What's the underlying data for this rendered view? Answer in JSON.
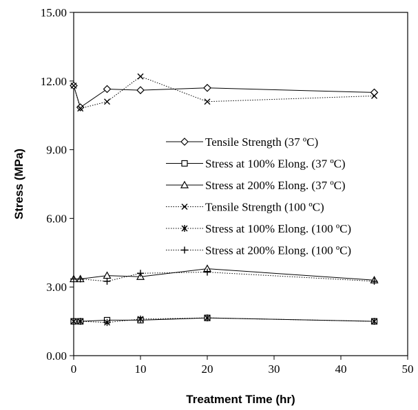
{
  "chart_data": {
    "type": "line",
    "xlabel": "Treatment Time (hr)",
    "ylabel": "Stress (MPa)",
    "xlim": [
      0,
      50
    ],
    "ylim": [
      0,
      15
    ],
    "x_ticks": [
      "0",
      "10",
      "20",
      "30",
      "40",
      "50"
    ],
    "y_ticks": [
      "0.00",
      "3.00",
      "6.00",
      "9.00",
      "12.00",
      "15.00"
    ],
    "grid": false,
    "legend_position": "center-right",
    "series": [
      {
        "name": "Tensile Strength (37 ºC)",
        "marker": "diamond",
        "line": "solid",
        "x": [
          0,
          1,
          5,
          10,
          20,
          45
        ],
        "y": [
          11.8,
          10.85,
          11.65,
          11.6,
          11.7,
          11.5
        ]
      },
      {
        "name": "Stress at 100% Elong. (37 ºC)",
        "marker": "square",
        "line": "solid",
        "x": [
          0,
          1,
          5,
          10,
          20,
          45
        ],
        "y": [
          1.5,
          1.5,
          1.55,
          1.55,
          1.65,
          1.5
        ]
      },
      {
        "name": "Stress at 200% Elong. (37 ºC)",
        "marker": "triangle",
        "line": "solid",
        "x": [
          0,
          1,
          5,
          10,
          20,
          45
        ],
        "y": [
          3.35,
          3.35,
          3.5,
          3.45,
          3.8,
          3.3
        ]
      },
      {
        "name": "Tensile Strength (100 ºC)",
        "marker": "x",
        "line": "dotted",
        "x": [
          0,
          1,
          5,
          10,
          20,
          45
        ],
        "y": [
          11.8,
          10.8,
          11.1,
          12.2,
          11.1,
          11.35
        ]
      },
      {
        "name": "Stress at 100% Elong. (100 ºC)",
        "marker": "asterisk",
        "line": "dotted",
        "x": [
          0,
          1,
          5,
          10,
          20,
          45
        ],
        "y": [
          1.5,
          1.5,
          1.45,
          1.6,
          1.65,
          1.5
        ]
      },
      {
        "name": "Stress at 200% Elong. (100 ºC)",
        "marker": "plus",
        "line": "dotted",
        "x": [
          0,
          1,
          5,
          10,
          20,
          45
        ],
        "y": [
          3.35,
          3.35,
          3.25,
          3.6,
          3.65,
          3.25
        ]
      }
    ]
  }
}
